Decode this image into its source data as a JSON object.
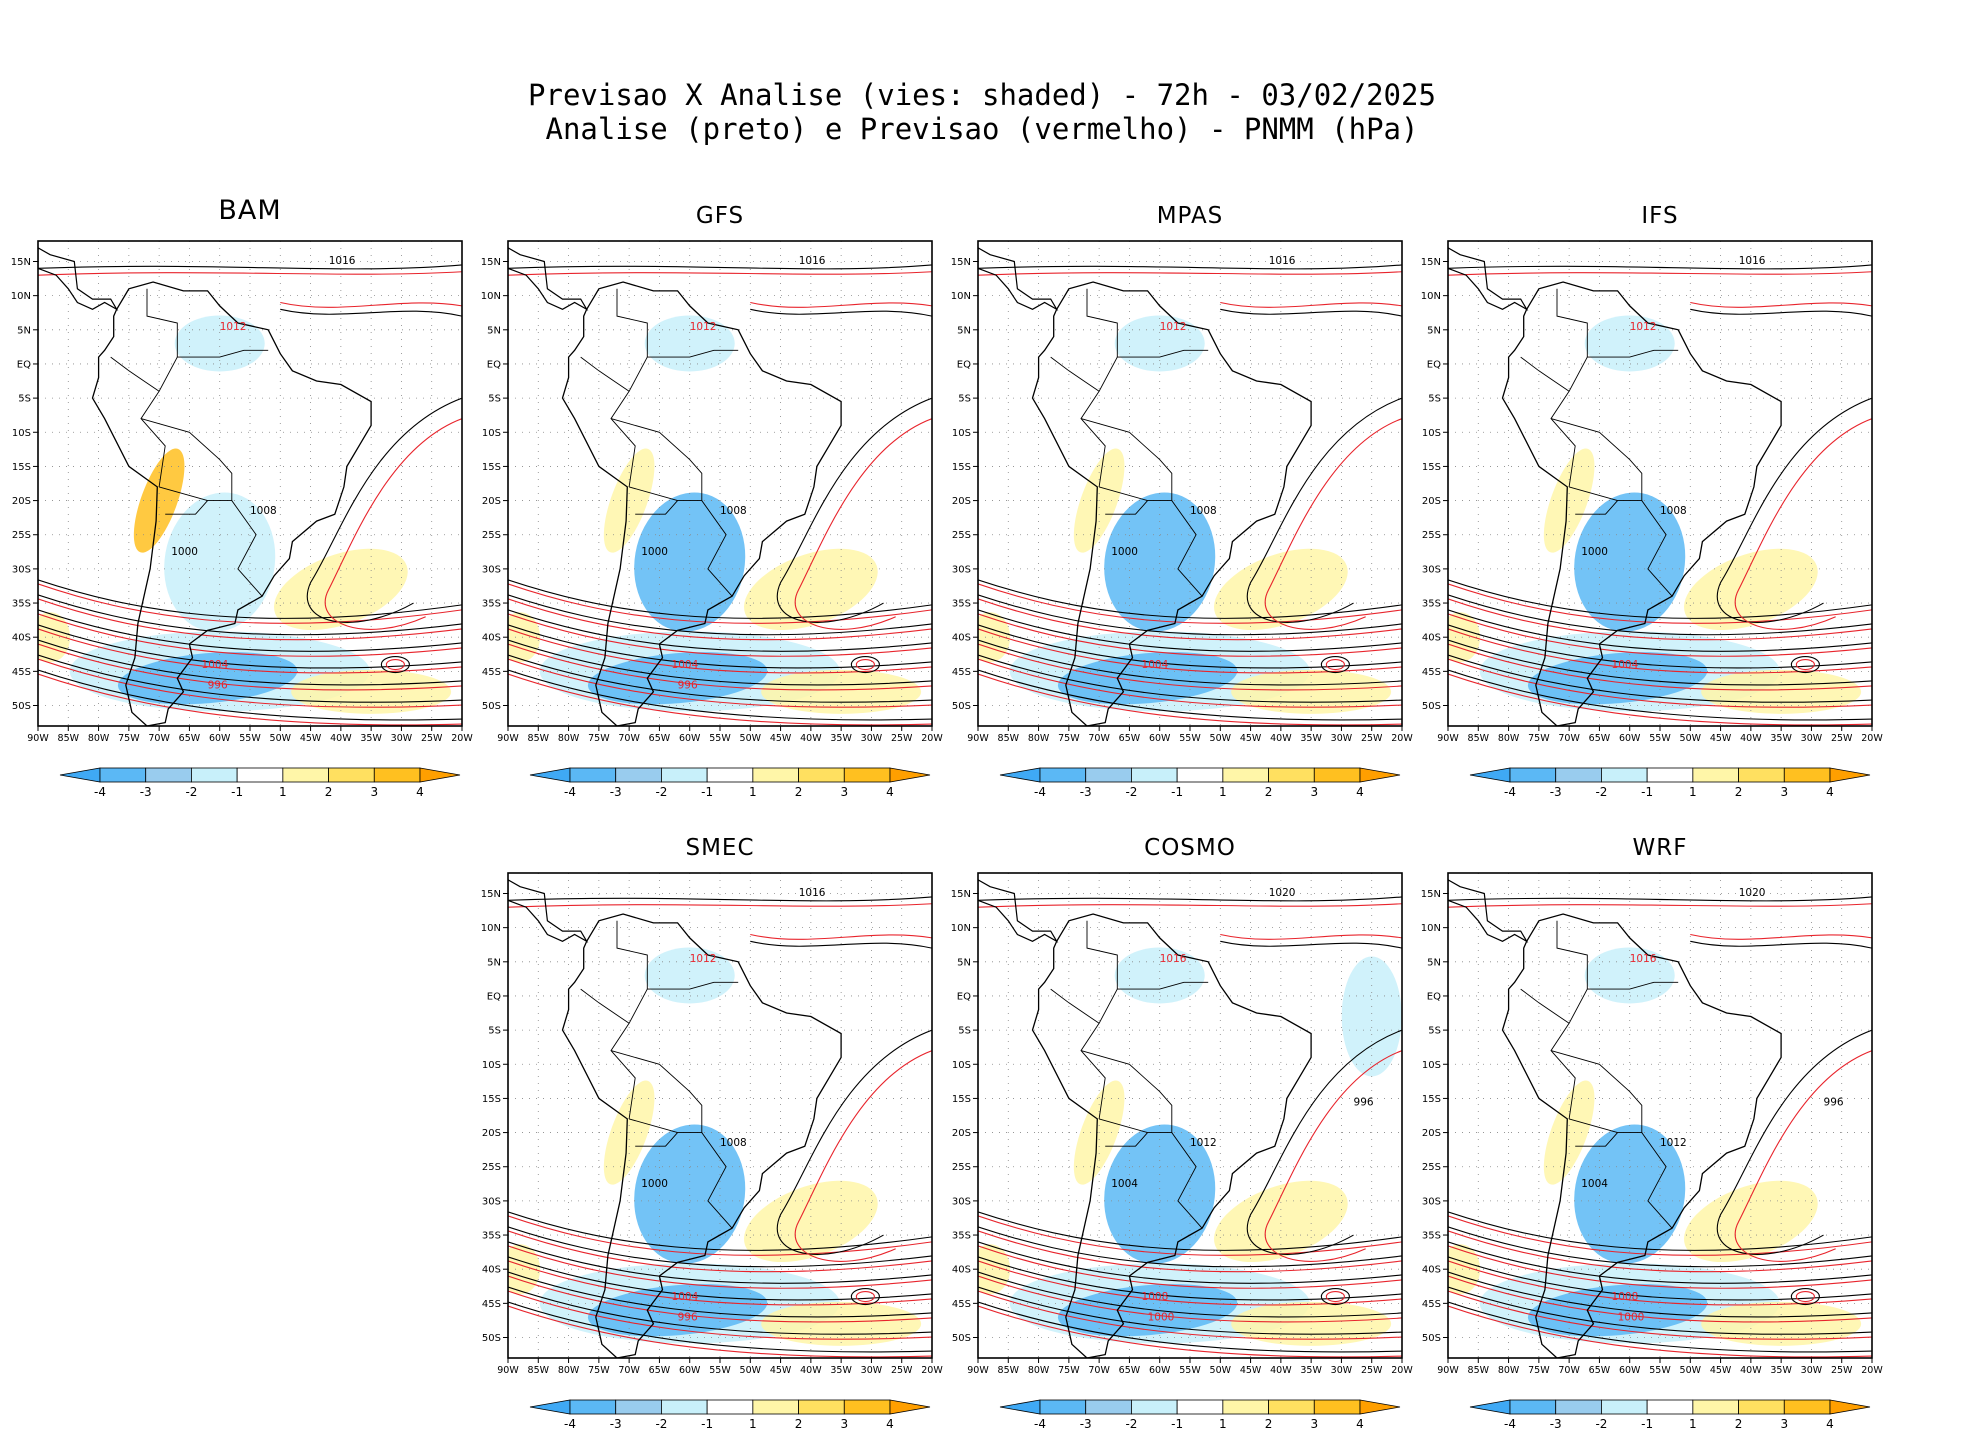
{
  "header": {
    "line1": "Previsao X Analise (vies: shaded) - 72h - 03/02/2025",
    "line2": "Analise (preto) e Previsao (vermelho) - PNMM (hPa)"
  },
  "axes": {
    "lat_labels": [
      "15N",
      "10N",
      "5N",
      "EQ",
      "5S",
      "10S",
      "15S",
      "20S",
      "25S",
      "30S",
      "35S",
      "40S",
      "45S",
      "50S"
    ],
    "lon_labels": [
      "90W",
      "85W",
      "80W",
      "75W",
      "70W",
      "65W",
      "60W",
      "55W",
      "50W",
      "45W",
      "40W",
      "35W",
      "30W",
      "25W",
      "20W"
    ]
  },
  "colorbar": {
    "labels": [
      "-4",
      "-3",
      "-2",
      "-1",
      "1",
      "2",
      "3",
      "4"
    ],
    "colors": [
      "#3fa9f5",
      "#5bb8f5",
      "#99ccee",
      "#c8f0fa",
      "#ffffff",
      "#fff6a8",
      "#ffe060",
      "#ffc020",
      "#ff9f00"
    ]
  },
  "colors": {
    "analysis_contour": "#000000",
    "forecast_contour": "#e8242c"
  },
  "panels": [
    {
      "name": "BAM",
      "contour_labels": [
        "1016",
        "1012",
        "1008",
        "1004",
        "1000",
        "996"
      ]
    },
    {
      "name": "GFS",
      "contour_labels": [
        "1016",
        "1012",
        "1008",
        "1004",
        "1000",
        "996"
      ]
    },
    {
      "name": "MPAS",
      "contour_labels": [
        "1016",
        "1012",
        "1008",
        "1004",
        "1000"
      ]
    },
    {
      "name": "IFS",
      "contour_labels": [
        "1016",
        "1012",
        "1008",
        "1004",
        "1000"
      ]
    },
    {
      "name": "SMEC",
      "contour_labels": [
        "1016",
        "1012",
        "1008",
        "1004",
        "1000",
        "996"
      ]
    },
    {
      "name": "COSMO",
      "contour_labels": [
        "1020",
        "1016",
        "1012",
        "1008",
        "1004",
        "1000",
        "996"
      ]
    },
    {
      "name": "WRF",
      "contour_labels": [
        "1020",
        "1016",
        "1012",
        "1008",
        "1004",
        "1000",
        "996"
      ]
    }
  ]
}
